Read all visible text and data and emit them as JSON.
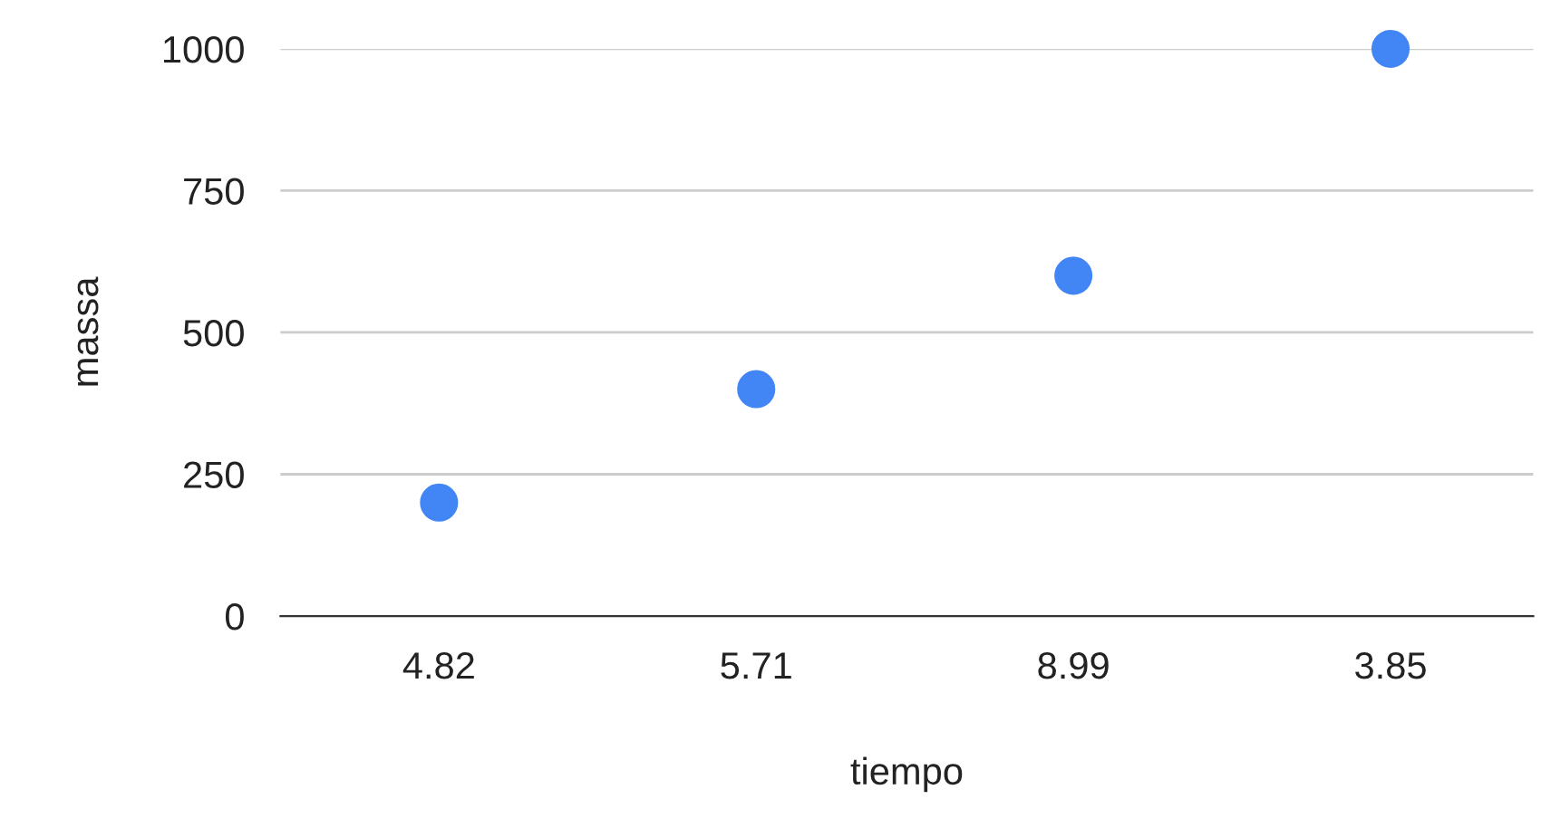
{
  "chart_data": {
    "type": "scatter",
    "xlabel": "tiempo",
    "ylabel": "massa",
    "categories": [
      "4.82",
      "5.71",
      "8.99",
      "3.85"
    ],
    "series": [
      {
        "color": "#4285f4",
        "values": [
          200,
          400,
          600,
          1000
        ]
      }
    ],
    "ylim": [
      0,
      1000
    ],
    "yticks": [
      0,
      250,
      500,
      750,
      1000
    ],
    "grid": "y",
    "marker": "circle",
    "legend": false
  }
}
